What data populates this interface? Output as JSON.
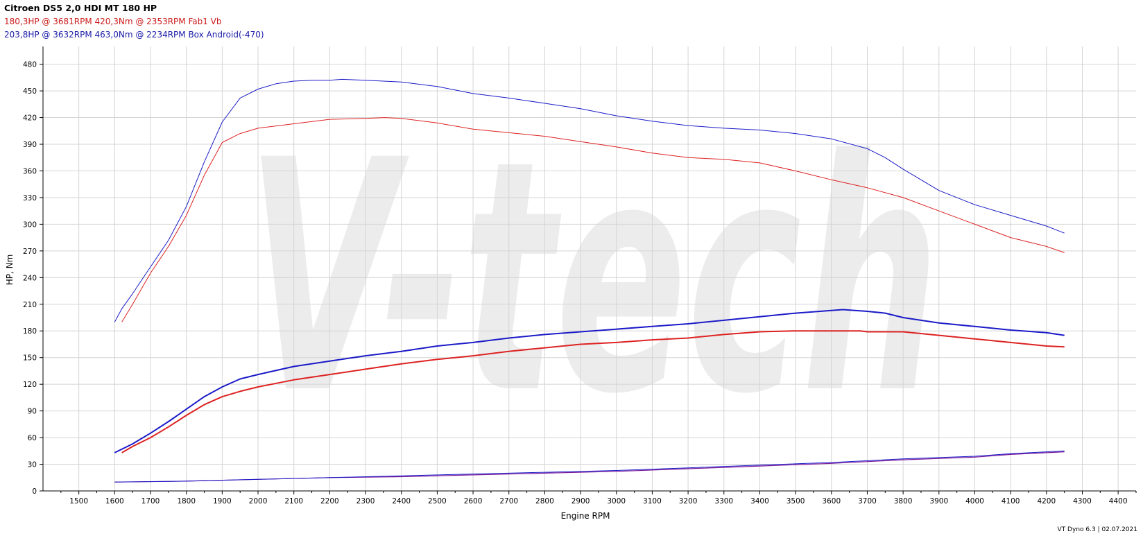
{
  "header": {
    "title": "Citroen DS5 2,0 HDI MT 180 HP",
    "red_line": "180,3HP @ 3681RPM 420,3Nm @ 2353RPM  Fab1 Vb",
    "blue_line": "203,8HP @ 3632RPM 463,0Nm @ 2234RPM  Box Android(-470)"
  },
  "footer": "VT Dyno 6.3 | 02.07.2021",
  "watermark": "V-tech",
  "colors": {
    "red": "#dd2222",
    "blue": "#1a1ac8",
    "grid": "#d4d4d4",
    "watermark": "#ececec"
  },
  "chart_data": {
    "type": "line",
    "xlabel": "Engine RPM",
    "ylabel": "HP, Nm",
    "xlim": [
      1400,
      4450
    ],
    "ylim": [
      0,
      500
    ],
    "xticks": [
      1500,
      1600,
      1700,
      1800,
      1900,
      2000,
      2100,
      2200,
      2300,
      2400,
      2500,
      2600,
      2700,
      2800,
      2900,
      3000,
      3100,
      3200,
      3300,
      3400,
      3500,
      3600,
      3700,
      3800,
      3900,
      4000,
      4100,
      4200,
      4300,
      4400
    ],
    "yticks": [
      0,
      30,
      60,
      90,
      120,
      150,
      180,
      210,
      240,
      270,
      300,
      330,
      360,
      390,
      420,
      450,
      480
    ],
    "grid": true,
    "series": [
      {
        "color": "#1a1ac8",
        "width": 1,
        "points": [
          [
            1600,
            190
          ],
          [
            1620,
            205
          ],
          [
            1650,
            222
          ],
          [
            1700,
            252
          ],
          [
            1750,
            282
          ],
          [
            1800,
            320
          ],
          [
            1850,
            370
          ],
          [
            1900,
            415
          ],
          [
            1950,
            442
          ],
          [
            2000,
            452
          ],
          [
            2050,
            458
          ],
          [
            2100,
            461
          ],
          [
            2150,
            462
          ],
          [
            2200,
            462
          ],
          [
            2234,
            463
          ],
          [
            2300,
            462
          ],
          [
            2400,
            460
          ],
          [
            2500,
            455
          ],
          [
            2600,
            447
          ],
          [
            2700,
            442
          ],
          [
            2800,
            436
          ],
          [
            2900,
            430
          ],
          [
            3000,
            422
          ],
          [
            3100,
            416
          ],
          [
            3200,
            411
          ],
          [
            3300,
            408
          ],
          [
            3400,
            406
          ],
          [
            3500,
            402
          ],
          [
            3600,
            396
          ],
          [
            3700,
            385
          ],
          [
            3750,
            375
          ],
          [
            3800,
            362
          ],
          [
            3900,
            338
          ],
          [
            4000,
            322
          ],
          [
            4100,
            310
          ],
          [
            4200,
            298
          ],
          [
            4250,
            290
          ]
        ]
      },
      {
        "color": "#dd2222",
        "width": 1,
        "points": [
          [
            1620,
            190
          ],
          [
            1650,
            210
          ],
          [
            1700,
            245
          ],
          [
            1750,
            275
          ],
          [
            1800,
            310
          ],
          [
            1850,
            355
          ],
          [
            1900,
            392
          ],
          [
            1950,
            402
          ],
          [
            2000,
            408
          ],
          [
            2100,
            413
          ],
          [
            2200,
            418
          ],
          [
            2300,
            419
          ],
          [
            2353,
            420
          ],
          [
            2400,
            419
          ],
          [
            2500,
            414
          ],
          [
            2600,
            407
          ],
          [
            2700,
            403
          ],
          [
            2800,
            399
          ],
          [
            2900,
            393
          ],
          [
            3000,
            387
          ],
          [
            3100,
            380
          ],
          [
            3200,
            375
          ],
          [
            3300,
            373
          ],
          [
            3400,
            369
          ],
          [
            3500,
            360
          ],
          [
            3600,
            350
          ],
          [
            3700,
            341
          ],
          [
            3800,
            330
          ],
          [
            3900,
            315
          ],
          [
            4000,
            300
          ],
          [
            4100,
            285
          ],
          [
            4200,
            275
          ],
          [
            4250,
            268
          ]
        ]
      },
      {
        "color": "#1a1ac8",
        "width": 2,
        "points": [
          [
            1600,
            43
          ],
          [
            1650,
            53
          ],
          [
            1700,
            65
          ],
          [
            1750,
            78
          ],
          [
            1800,
            92
          ],
          [
            1850,
            106
          ],
          [
            1900,
            117
          ],
          [
            1950,
            126
          ],
          [
            2000,
            131
          ],
          [
            2100,
            140
          ],
          [
            2200,
            146
          ],
          [
            2300,
            152
          ],
          [
            2400,
            157
          ],
          [
            2500,
            163
          ],
          [
            2600,
            167
          ],
          [
            2700,
            172
          ],
          [
            2800,
            176
          ],
          [
            2900,
            179
          ],
          [
            3000,
            182
          ],
          [
            3100,
            185
          ],
          [
            3200,
            188
          ],
          [
            3300,
            192
          ],
          [
            3400,
            196
          ],
          [
            3500,
            200
          ],
          [
            3600,
            203
          ],
          [
            3632,
            204
          ],
          [
            3700,
            202
          ],
          [
            3750,
            200
          ],
          [
            3800,
            195
          ],
          [
            3900,
            189
          ],
          [
            4000,
            185
          ],
          [
            4100,
            181
          ],
          [
            4200,
            178
          ],
          [
            4250,
            175
          ]
        ]
      },
      {
        "color": "#dd2222",
        "width": 2,
        "points": [
          [
            1620,
            43
          ],
          [
            1650,
            50
          ],
          [
            1700,
            60
          ],
          [
            1750,
            72
          ],
          [
            1800,
            85
          ],
          [
            1850,
            97
          ],
          [
            1900,
            106
          ],
          [
            1950,
            112
          ],
          [
            2000,
            117
          ],
          [
            2100,
            125
          ],
          [
            2200,
            131
          ],
          [
            2300,
            137
          ],
          [
            2400,
            143
          ],
          [
            2500,
            148
          ],
          [
            2600,
            152
          ],
          [
            2700,
            157
          ],
          [
            2800,
            161
          ],
          [
            2900,
            165
          ],
          [
            3000,
            167
          ],
          [
            3100,
            170
          ],
          [
            3200,
            172
          ],
          [
            3300,
            176
          ],
          [
            3400,
            179
          ],
          [
            3500,
            180
          ],
          [
            3600,
            180
          ],
          [
            3681,
            180
          ],
          [
            3700,
            179
          ],
          [
            3800,
            179
          ],
          [
            3900,
            175
          ],
          [
            4000,
            171
          ],
          [
            4100,
            167
          ],
          [
            4200,
            163
          ],
          [
            4250,
            162
          ]
        ]
      },
      {
        "color": "#7a1a9c",
        "width": 1.2,
        "points": [
          [
            1600,
            10
          ],
          [
            1800,
            11
          ],
          [
            2000,
            13
          ],
          [
            2200,
            15
          ],
          [
            2400,
            16
          ],
          [
            2600,
            18
          ],
          [
            2800,
            20
          ],
          [
            3000,
            22
          ],
          [
            3200,
            25
          ],
          [
            3400,
            28
          ],
          [
            3600,
            31
          ],
          [
            3800,
            35
          ],
          [
            4000,
            38
          ],
          [
            4100,
            41
          ],
          [
            4200,
            43
          ],
          [
            4250,
            44
          ]
        ]
      },
      {
        "color": "#1a1ac8",
        "width": 1,
        "points": [
          [
            1600,
            10
          ],
          [
            1800,
            11
          ],
          [
            2000,
            13
          ],
          [
            2200,
            15
          ],
          [
            2400,
            17
          ],
          [
            2600,
            19
          ],
          [
            2800,
            21
          ],
          [
            3000,
            23
          ],
          [
            3200,
            26
          ],
          [
            3400,
            29
          ],
          [
            3600,
            32
          ],
          [
            3800,
            36
          ],
          [
            4000,
            39
          ],
          [
            4100,
            42
          ],
          [
            4200,
            44
          ],
          [
            4250,
            45
          ]
        ]
      }
    ]
  }
}
